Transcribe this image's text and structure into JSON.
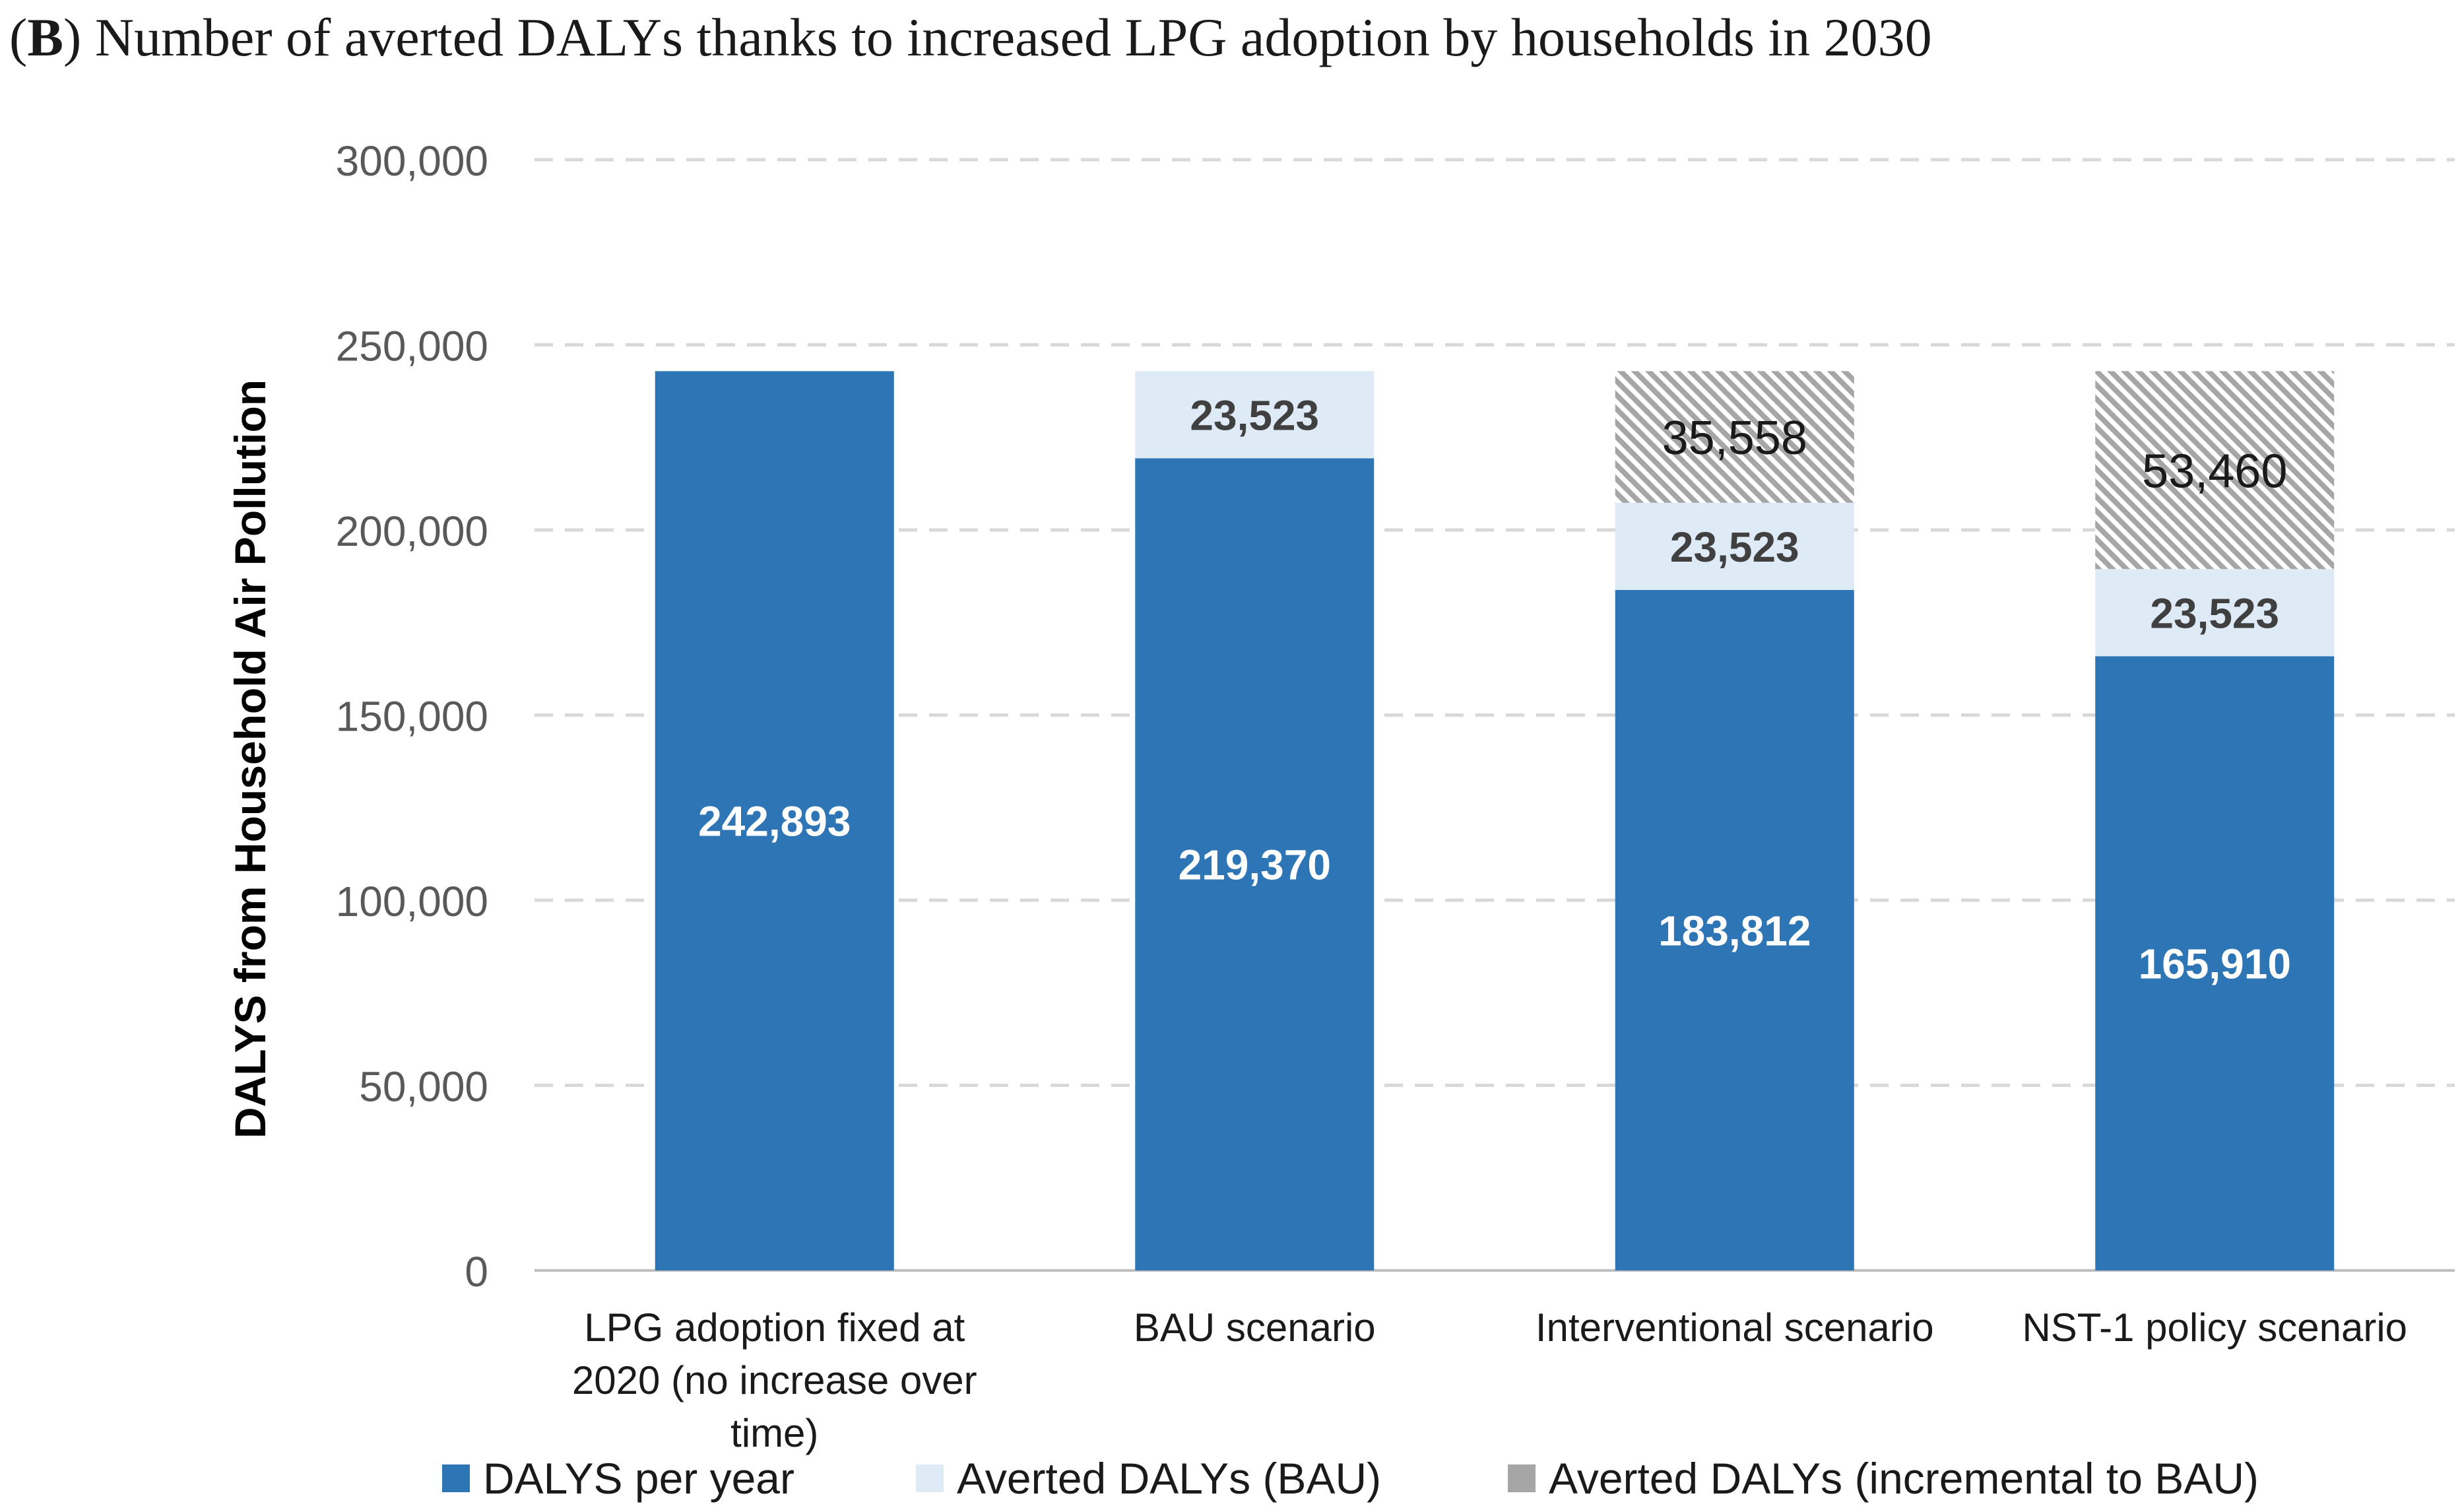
{
  "title": {
    "panel_letter": "B",
    "text": "Number of averted DALYs thanks to increased LPG adoption by households in 2030"
  },
  "chart_data": {
    "type": "bar",
    "stacked": true,
    "title": "Number of averted DALYs thanks to increased LPG adoption by households in 2030",
    "xlabel": "",
    "ylabel": "DALYS from Household Air Pollution",
    "ylim": [
      0,
      300000
    ],
    "yticks": [
      0,
      50000,
      100000,
      150000,
      200000,
      250000,
      300000
    ],
    "ytick_labels": [
      "0",
      "50,000",
      "100,000",
      "150,000",
      "200,000",
      "250,000",
      "300,000"
    ],
    "grid": true,
    "legend_position": "bottom",
    "categories": [
      [
        "LPG adoption fixed at",
        "2020 (no increase over",
        "time)"
      ],
      [
        "BAU scenario"
      ],
      [
        "Interventional scenario"
      ],
      [
        "NST-1 policy scenario"
      ]
    ],
    "series": [
      {
        "name": "DALYS per year",
        "color": "#2e75b6",
        "values": [
          242893,
          219370,
          183812,
          165910
        ],
        "labels": [
          "242,893",
          "219,370",
          "183,812",
          "165,910"
        ],
        "label_color": "#ffffff"
      },
      {
        "name": "Averted DALYs (BAU)",
        "color": "#deebf7",
        "values": [
          0,
          23523,
          23523,
          23523
        ],
        "labels": [
          "",
          "23,523",
          "23,523",
          "23,523"
        ],
        "label_color": "#404040"
      },
      {
        "name": "Averted DALYs (incremental to BAU)",
        "color": "#a6a6a6",
        "pattern": "hatch",
        "values": [
          0,
          0,
          35558,
          53460
        ],
        "labels": [
          "",
          "",
          "35,558",
          "53,460"
        ],
        "label_color": "#1a1a1a"
      }
    ]
  },
  "legend": {
    "items": [
      {
        "label": "DALYS per year",
        "color": "#2e75b6"
      },
      {
        "label": "Averted DALYs (BAU)",
        "color": "#deebf7"
      },
      {
        "label": "Averted DALYs (incremental to BAU)",
        "color": "#a6a6a6"
      }
    ]
  }
}
